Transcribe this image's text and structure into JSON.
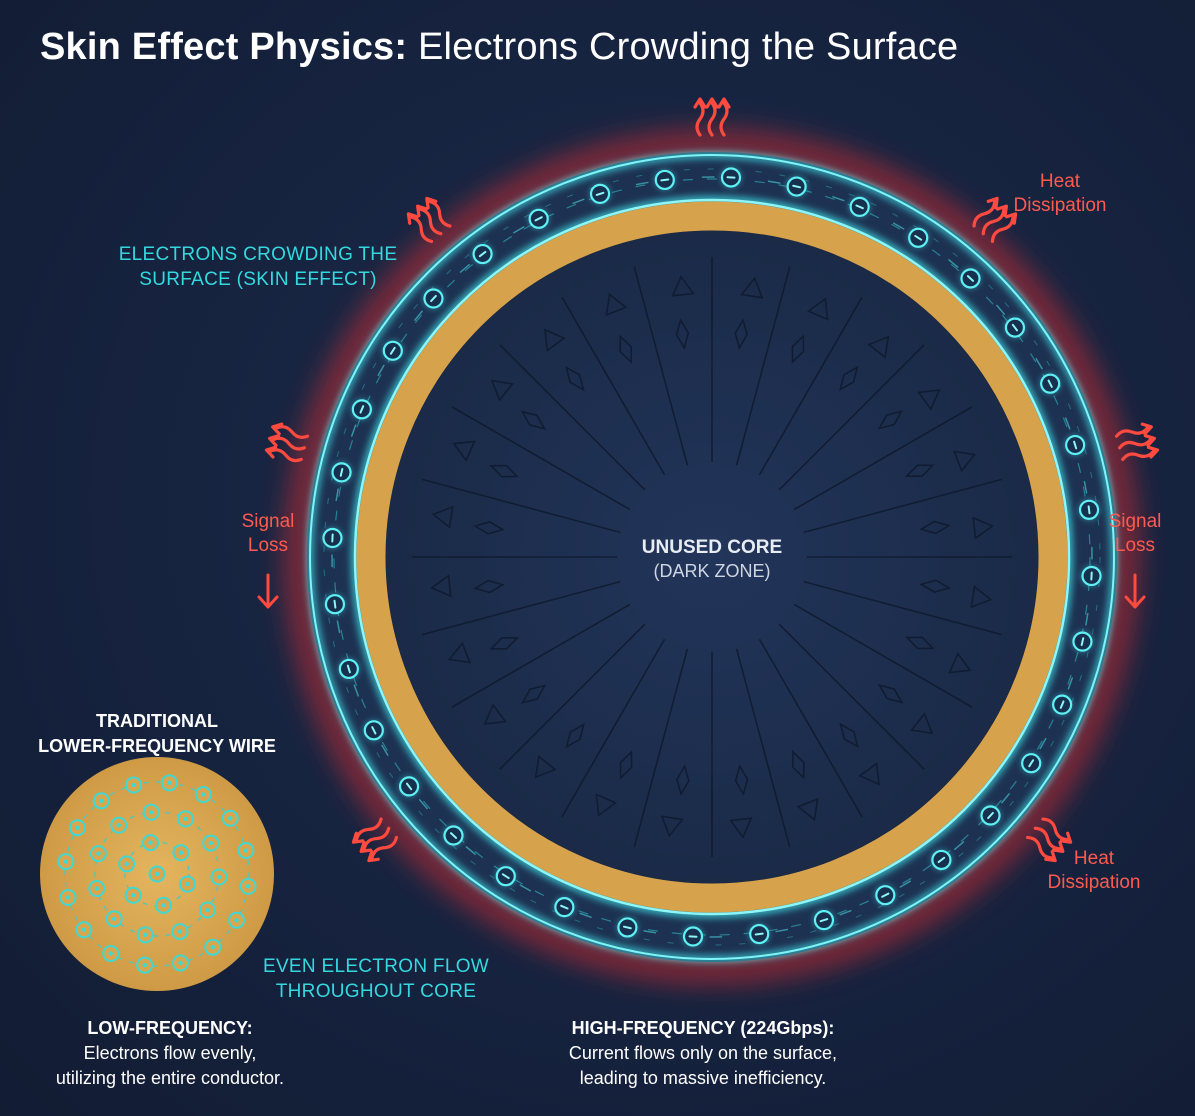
{
  "title": {
    "bold": "Skin Effect Physics:",
    "light": " Electrons Crowding the Surface"
  },
  "labels": {
    "skin_effect_line1": "ELECTRONS CROWDING THE",
    "skin_effect_line2": "SURFACE (SKIN EFFECT)",
    "heat_top_line1": "Heat",
    "heat_top_line2": "Dissipation",
    "heat_bottom_line1": "Heat",
    "heat_bottom_line2": "Dissipation",
    "signal_left_line1": "Signal",
    "signal_left_line2": "Loss",
    "signal_right_line1": "Signal",
    "signal_right_line2": "Loss",
    "core_line1": "UNUSED CORE",
    "core_line2": "(DARK ZONE)",
    "traditional_line1": "TRADITIONAL",
    "traditional_line2": "LOWER-FREQUENCY WIRE",
    "even_flow_line1": "EVEN ELECTRON FLOW",
    "even_flow_line2": "THROUGHOUT CORE"
  },
  "captions": {
    "low": {
      "head": "LOW-FREQUENCY:",
      "line1": "Electrons flow evenly,",
      "line2": "utilizing the entire conductor."
    },
    "high": {
      "head": "HIGH-FREQUENCY (224Gbps):",
      "line1": "Current flows only on the surface,",
      "line2": "leading to massive inefficiency."
    }
  },
  "colors": {
    "background": "#16233f",
    "cyan": "#34d9df",
    "copper": "#d9a64e",
    "heat_red": "#ff4a3f",
    "core": "#1c2d4b"
  },
  "icons": [
    "electron-icon",
    "heat-wave-icon",
    "down-arrow-icon"
  ]
}
